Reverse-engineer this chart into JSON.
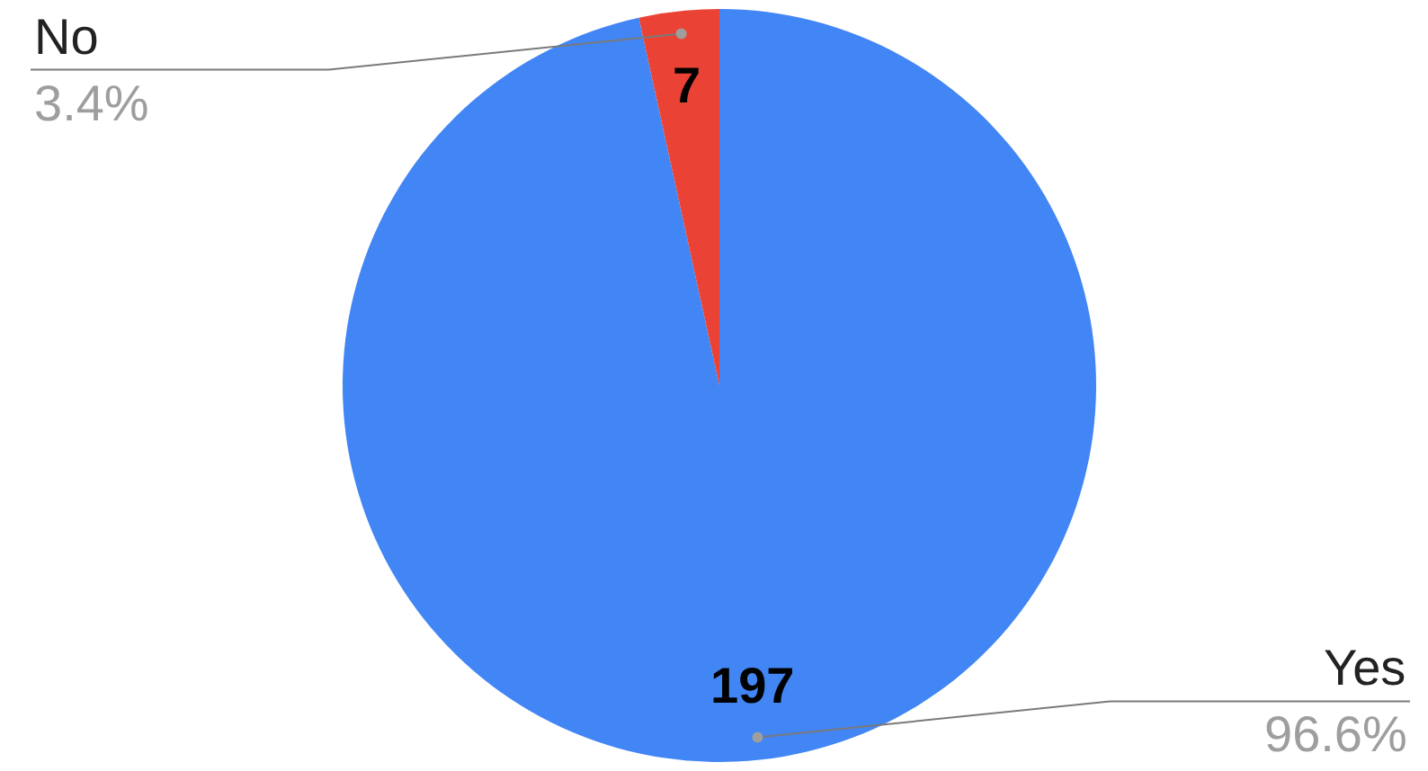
{
  "chart_data": {
    "type": "pie",
    "categories": [
      "Yes",
      "No"
    ],
    "values": [
      197,
      7
    ],
    "colors": [
      "#4285f4",
      "#ea4335"
    ],
    "value_labels": [
      "197",
      "7"
    ],
    "annotations": [
      "96.6%",
      "3.4%"
    ],
    "legend": false
  }
}
